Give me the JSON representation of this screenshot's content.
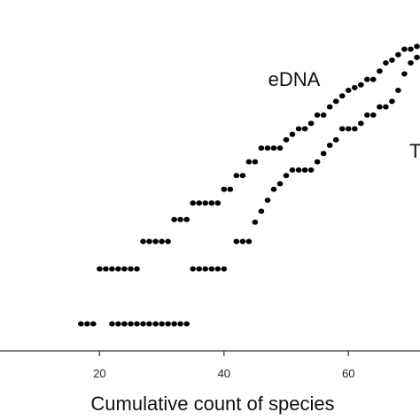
{
  "chart_data": {
    "type": "scatter",
    "title": "",
    "xlabel": "Cumulative count of species",
    "ylabel": "",
    "x_ticks": [
      20,
      40,
      60
    ],
    "xlim": [
      4,
      71.5
    ],
    "ylim": [
      0,
      11
    ],
    "grid": false,
    "series": [
      {
        "name": "eDNA",
        "color": "#000000",
        "points": [
          [
            17,
            0.5
          ],
          [
            18,
            0.5
          ],
          [
            19,
            0.5
          ],
          [
            20,
            2.5
          ],
          [
            21,
            2.5
          ],
          [
            22,
            2.5
          ],
          [
            23,
            2.5
          ],
          [
            24,
            2.5
          ],
          [
            25,
            2.5
          ],
          [
            26,
            2.5
          ],
          [
            27,
            3.5
          ],
          [
            28,
            3.5
          ],
          [
            29,
            3.5
          ],
          [
            30,
            3.5
          ],
          [
            31,
            3.5
          ],
          [
            32,
            4.3
          ],
          [
            33,
            4.3
          ],
          [
            34,
            4.3
          ],
          [
            35,
            4.9
          ],
          [
            36,
            4.9
          ],
          [
            37,
            4.9
          ],
          [
            38,
            4.9
          ],
          [
            39,
            4.9
          ],
          [
            40,
            5.4
          ],
          [
            41,
            5.4
          ],
          [
            42,
            5.9
          ],
          [
            43,
            5.9
          ],
          [
            44,
            6.4
          ],
          [
            45,
            6.4
          ],
          [
            46,
            6.9
          ],
          [
            47,
            6.9
          ],
          [
            48,
            6.9
          ],
          [
            49,
            6.9
          ],
          [
            50,
            7.2
          ],
          [
            51,
            7.4
          ],
          [
            52,
            7.6
          ],
          [
            53,
            7.6
          ],
          [
            54,
            7.8
          ],
          [
            55,
            8.1
          ],
          [
            56,
            8.1
          ],
          [
            57,
            8.4
          ],
          [
            58,
            8.6
          ],
          [
            59,
            8.8
          ],
          [
            60,
            9.0
          ],
          [
            61,
            9.1
          ],
          [
            62,
            9.2
          ],
          [
            63,
            9.4
          ],
          [
            64,
            9.4
          ],
          [
            65,
            9.7
          ],
          [
            66,
            10.0
          ],
          [
            67,
            10.1
          ],
          [
            68,
            10.3
          ],
          [
            69,
            10.5
          ],
          [
            70,
            10.5
          ],
          [
            71,
            10.6
          ],
          [
            72,
            10.8
          ]
        ]
      },
      {
        "name": "T",
        "color": "#000000",
        "points": [
          [
            22,
            0.5
          ],
          [
            23,
            0.5
          ],
          [
            24,
            0.5
          ],
          [
            25,
            0.5
          ],
          [
            26,
            0.5
          ],
          [
            27,
            0.5
          ],
          [
            28,
            0.5
          ],
          [
            29,
            0.5
          ],
          [
            30,
            0.5
          ],
          [
            31,
            0.5
          ],
          [
            32,
            0.5
          ],
          [
            33,
            0.5
          ],
          [
            34,
            0.5
          ],
          [
            35,
            2.5
          ],
          [
            36,
            2.5
          ],
          [
            37,
            2.5
          ],
          [
            38,
            2.5
          ],
          [
            39,
            2.5
          ],
          [
            40,
            2.5
          ],
          [
            42,
            3.5
          ],
          [
            43,
            3.5
          ],
          [
            44,
            3.5
          ],
          [
            45,
            4.2
          ],
          [
            46,
            4.6
          ],
          [
            47,
            5.0
          ],
          [
            48,
            5.4
          ],
          [
            49,
            5.6
          ],
          [
            50,
            5.9
          ],
          [
            51,
            6.1
          ],
          [
            52,
            6.1
          ],
          [
            53,
            6.1
          ],
          [
            54,
            6.1
          ],
          [
            55,
            6.4
          ],
          [
            56,
            6.7
          ],
          [
            57,
            7.0
          ],
          [
            58,
            7.2
          ],
          [
            59,
            7.6
          ],
          [
            60,
            7.6
          ],
          [
            61,
            7.6
          ],
          [
            62,
            7.8
          ],
          [
            63,
            8.1
          ],
          [
            64,
            8.1
          ],
          [
            65,
            8.4
          ],
          [
            66,
            8.4
          ],
          [
            67,
            8.6
          ],
          [
            68,
            9.0
          ],
          [
            69,
            9.6
          ],
          [
            70,
            10.0
          ],
          [
            71,
            10.2
          ],
          [
            72,
            10.3
          ]
        ]
      }
    ]
  }
}
